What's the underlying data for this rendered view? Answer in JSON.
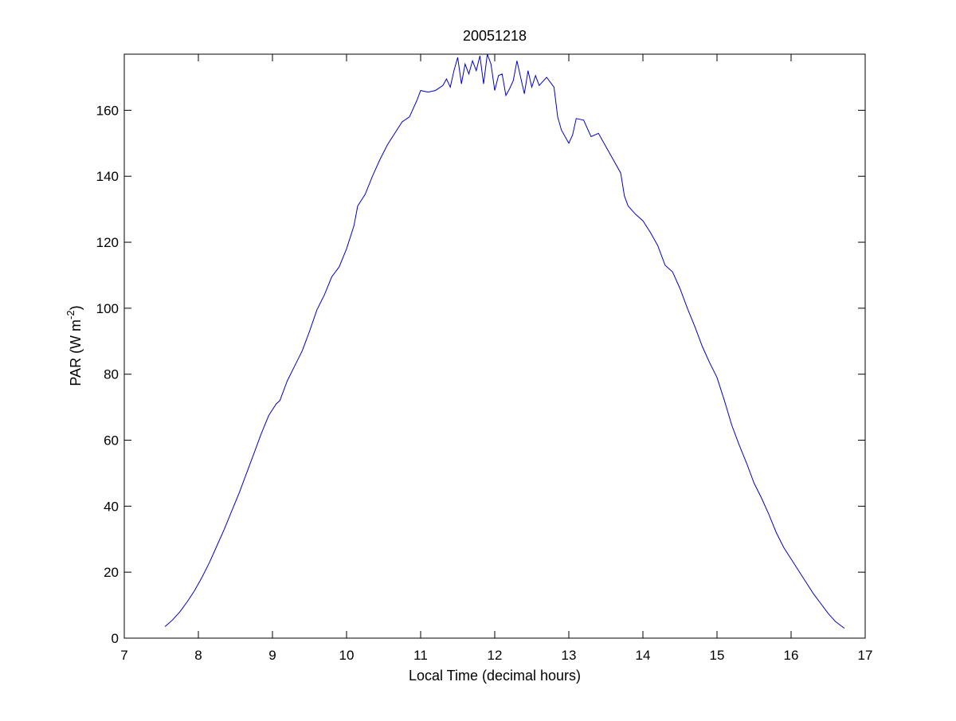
{
  "chart_data": {
    "type": "line",
    "title": "20051218",
    "xlabel": "Local Time (decimal hours)",
    "ylabel": {
      "base": "PAR (W m",
      "superscript": "-2",
      "close": ")"
    },
    "xlim": [
      7,
      17
    ],
    "ylim": [
      0,
      177
    ],
    "x_ticks": [
      "7",
      "8",
      "9",
      "10",
      "11",
      "12",
      "13",
      "14",
      "15",
      "16",
      "17"
    ],
    "y_ticks": [
      "0",
      "20",
      "40",
      "60",
      "80",
      "100",
      "120",
      "140",
      "160"
    ],
    "grid": false,
    "series": [
      {
        "color": "#0000cc",
        "points": [
          [
            7.55,
            3.5
          ],
          [
            7.65,
            5.5
          ],
          [
            7.75,
            8
          ],
          [
            7.85,
            11
          ],
          [
            7.95,
            14.5
          ],
          [
            8.05,
            18.5
          ],
          [
            8.15,
            23
          ],
          [
            8.25,
            28
          ],
          [
            8.35,
            33
          ],
          [
            8.45,
            38.5
          ],
          [
            8.55,
            44
          ],
          [
            8.65,
            50
          ],
          [
            8.75,
            56
          ],
          [
            8.85,
            62
          ],
          [
            8.95,
            67.5
          ],
          [
            9.05,
            71
          ],
          [
            9.1,
            72
          ],
          [
            9.2,
            78
          ],
          [
            9.3,
            82.5
          ],
          [
            9.4,
            87
          ],
          [
            9.5,
            93
          ],
          [
            9.6,
            99.5
          ],
          [
            9.7,
            104
          ],
          [
            9.8,
            109.5
          ],
          [
            9.9,
            112.5
          ],
          [
            10.0,
            118
          ],
          [
            10.1,
            125
          ],
          [
            10.15,
            131
          ],
          [
            10.25,
            134.5
          ],
          [
            10.35,
            140
          ],
          [
            10.45,
            145
          ],
          [
            10.55,
            149.5
          ],
          [
            10.65,
            153
          ],
          [
            10.75,
            156.5
          ],
          [
            10.85,
            158
          ],
          [
            10.95,
            163
          ],
          [
            11.0,
            166
          ],
          [
            11.1,
            165.5
          ],
          [
            11.2,
            166
          ],
          [
            11.3,
            167.5
          ],
          [
            11.35,
            169.5
          ],
          [
            11.4,
            167
          ],
          [
            11.45,
            172
          ],
          [
            11.5,
            176
          ],
          [
            11.55,
            168
          ],
          [
            11.6,
            174
          ],
          [
            11.65,
            171
          ],
          [
            11.7,
            175
          ],
          [
            11.75,
            172
          ],
          [
            11.8,
            176.5
          ],
          [
            11.85,
            168
          ],
          [
            11.9,
            177
          ],
          [
            11.95,
            174
          ],
          [
            12.0,
            166
          ],
          [
            12.05,
            170.5
          ],
          [
            12.1,
            171
          ],
          [
            12.15,
            164.5
          ],
          [
            12.2,
            166.5
          ],
          [
            12.25,
            169
          ],
          [
            12.3,
            175
          ],
          [
            12.35,
            170
          ],
          [
            12.4,
            165
          ],
          [
            12.45,
            172
          ],
          [
            12.5,
            167
          ],
          [
            12.55,
            170.5
          ],
          [
            12.6,
            167.5
          ],
          [
            12.7,
            170
          ],
          [
            12.8,
            167
          ],
          [
            12.85,
            158
          ],
          [
            12.9,
            154
          ],
          [
            13.0,
            150
          ],
          [
            13.05,
            152.5
          ],
          [
            13.1,
            157.5
          ],
          [
            13.2,
            157
          ],
          [
            13.3,
            152
          ],
          [
            13.4,
            153
          ],
          [
            13.5,
            149
          ],
          [
            13.6,
            145
          ],
          [
            13.7,
            141
          ],
          [
            13.75,
            134
          ],
          [
            13.8,
            131
          ],
          [
            13.9,
            128.5
          ],
          [
            14.0,
            126.5
          ],
          [
            14.1,
            123
          ],
          [
            14.2,
            119
          ],
          [
            14.3,
            113
          ],
          [
            14.4,
            111
          ],
          [
            14.5,
            106
          ],
          [
            14.6,
            100
          ],
          [
            14.7,
            94.5
          ],
          [
            14.8,
            88.5
          ],
          [
            14.9,
            83.5
          ],
          [
            15.0,
            79
          ],
          [
            15.1,
            72
          ],
          [
            15.2,
            64.5
          ],
          [
            15.3,
            58.5
          ],
          [
            15.4,
            53
          ],
          [
            15.5,
            47
          ],
          [
            15.6,
            42.5
          ],
          [
            15.7,
            37.5
          ],
          [
            15.8,
            32
          ],
          [
            15.9,
            27.5
          ],
          [
            16.0,
            24
          ],
          [
            16.1,
            20.5
          ],
          [
            16.2,
            17
          ],
          [
            16.3,
            13.5
          ],
          [
            16.4,
            10.5
          ],
          [
            16.5,
            7.5
          ],
          [
            16.6,
            5
          ],
          [
            16.72,
            3
          ]
        ]
      }
    ]
  }
}
